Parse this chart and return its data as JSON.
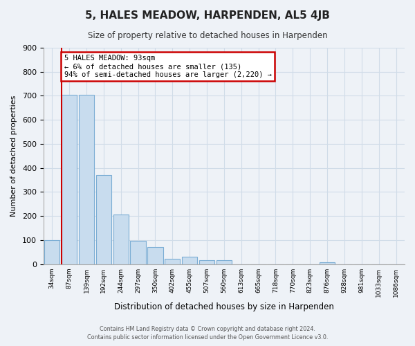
{
  "title": "5, HALES MEADOW, HARPENDEN, AL5 4JB",
  "subtitle": "Size of property relative to detached houses in Harpenden",
  "xlabel": "Distribution of detached houses by size in Harpenden",
  "ylabel": "Number of detached properties",
  "bar_labels": [
    "34sqm",
    "87sqm",
    "139sqm",
    "192sqm",
    "244sqm",
    "297sqm",
    "350sqm",
    "402sqm",
    "455sqm",
    "507sqm",
    "560sqm",
    "613sqm",
    "665sqm",
    "718sqm",
    "770sqm",
    "823sqm",
    "876sqm",
    "928sqm",
    "981sqm",
    "1033sqm",
    "1086sqm"
  ],
  "bar_values": [
    100,
    705,
    705,
    370,
    205,
    98,
    70,
    22,
    30,
    15,
    15,
    0,
    0,
    0,
    0,
    0,
    8,
    0,
    0,
    0,
    0
  ],
  "bar_color": "#c8dcee",
  "bar_edge_color": "#7badd4",
  "marker_label": "5 HALES MEADOW: 93sqm",
  "annotation_line1": "← 6% of detached houses are smaller (135)",
  "annotation_line2": "94% of semi-detached houses are larger (2,220) →",
  "annotation_box_color": "#ffffff",
  "annotation_box_edge": "#cc0000",
  "marker_line_color": "#cc0000",
  "red_line_xindex": 1,
  "ylim": [
    0,
    900
  ],
  "yticks": [
    0,
    100,
    200,
    300,
    400,
    500,
    600,
    700,
    800,
    900
  ],
  "footer_line1": "Contains HM Land Registry data © Crown copyright and database right 2024.",
  "footer_line2": "Contains public sector information licensed under the Open Government Licence v3.0.",
  "bg_color": "#eef2f7",
  "grid_color": "#d0dce8"
}
